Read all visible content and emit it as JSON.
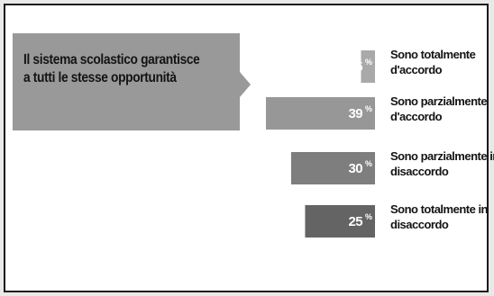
{
  "chart_data": {
    "type": "bar",
    "orientation": "horizontal",
    "title": "Il sistema scolastico garantisce a tutti le stesse opportunità",
    "unit": "%",
    "categories": [
      [
        "Sono totalmente",
        "d'accordo"
      ],
      [
        "Sono parzialmente",
        "d'accordo"
      ],
      [
        "Sono parzialmente in",
        "disaccordo"
      ],
      [
        "Sono totalmente in",
        "disaccordo"
      ]
    ],
    "values": [
      5,
      39,
      30,
      25
    ],
    "bar_colors": [
      "#a9a9a9",
      "#979797",
      "#7e7e7e",
      "#646464"
    ],
    "xlim": [
      0,
      39
    ]
  }
}
